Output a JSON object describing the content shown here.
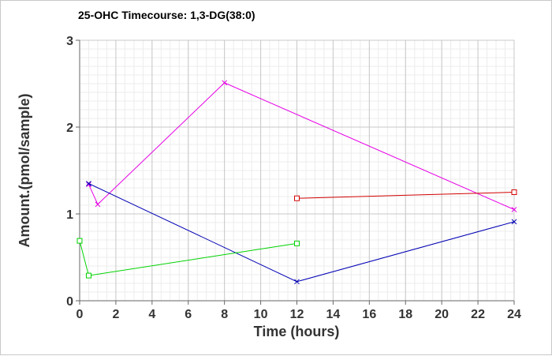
{
  "chart_data": {
    "type": "line",
    "title": "25-OHC Timecourse: 1,3-DG(38:0)",
    "xlabel": "Time (hours)",
    "ylabel": "Amount.(pmol/sample)",
    "xlim": [
      0,
      24
    ],
    "ylim": [
      0,
      3
    ],
    "xticks": [
      "0",
      "2",
      "4",
      "6",
      "8",
      "10",
      "12",
      "14",
      "16",
      "18",
      "20",
      "22",
      "24"
    ],
    "yticks": [
      "0",
      "1",
      "2",
      "3"
    ],
    "grid": true,
    "series": [
      {
        "color": "#e600e6",
        "marker": "x",
        "x": [
          0.5,
          1,
          8,
          24
        ],
        "y": [
          1.34,
          1.11,
          2.51,
          1.05
        ]
      },
      {
        "color": "#0000b4",
        "marker": "x",
        "x": [
          0.5,
          12,
          24
        ],
        "y": [
          1.35,
          0.22,
          0.91
        ]
      },
      {
        "color": "#00d200",
        "marker": "square",
        "x": [
          0,
          0.5,
          12
        ],
        "y": [
          0.69,
          0.29,
          0.66
        ]
      },
      {
        "color": "#d20000",
        "marker": "square",
        "x": [
          12,
          24
        ],
        "y": [
          1.18,
          1.25
        ]
      }
    ]
  }
}
